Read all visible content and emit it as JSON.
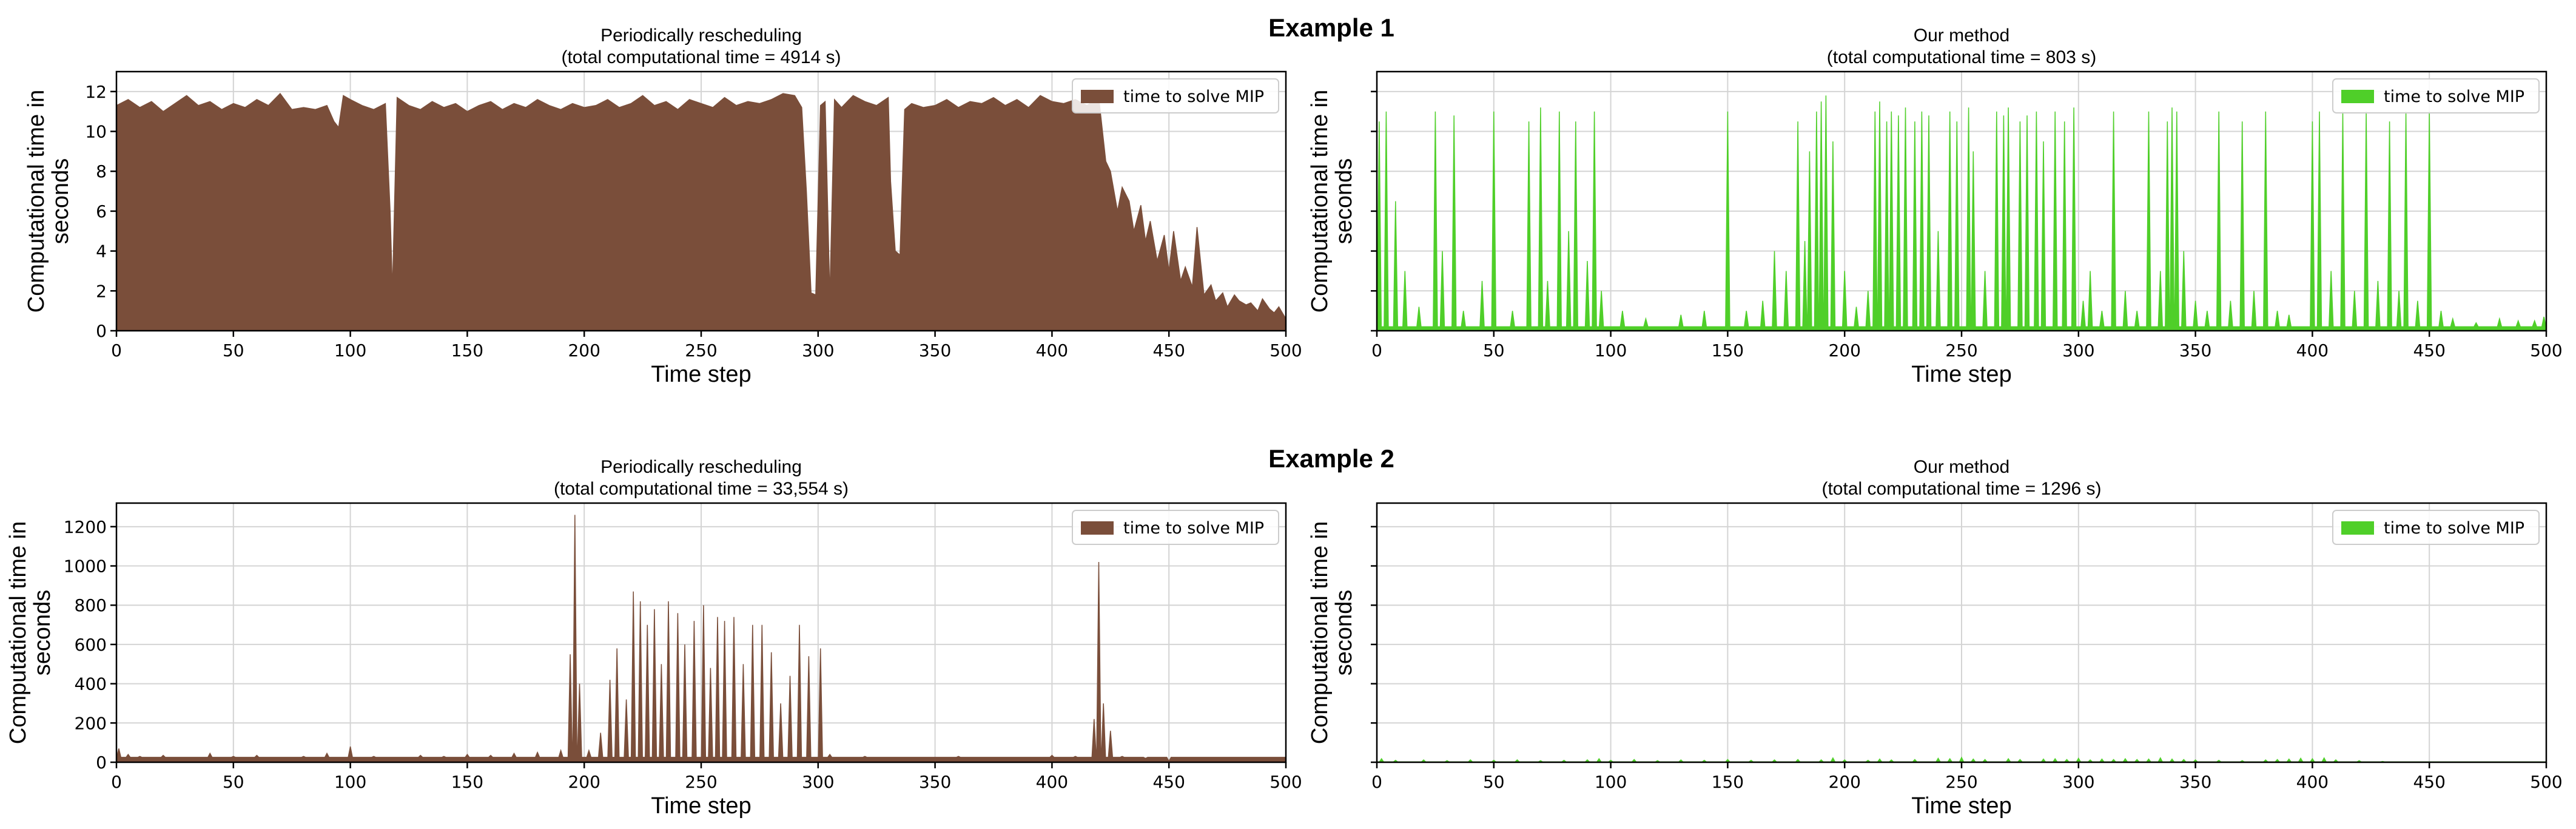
{
  "figure": {
    "example1_label": "Example 1",
    "example2_label": "Example 2"
  },
  "colors": {
    "periodic": "#7a4e3a",
    "ours": "#4fcf29"
  },
  "chart_data": [
    {
      "id": "p1",
      "type": "area",
      "title_line1": "Periodically rescheduling",
      "title_line2": "(total computational time = 4914 s)",
      "xlabel": "Time step",
      "ylabel_line1": "Computational time in",
      "ylabel_line2": "seconds",
      "legend": "time to solve MIP",
      "legend_position": "top-right",
      "grid": true,
      "xlim": [
        0,
        500
      ],
      "ylim": [
        0,
        13
      ],
      "xticks": [
        0,
        50,
        100,
        150,
        200,
        250,
        300,
        350,
        400,
        450,
        500
      ],
      "yticks": [
        0,
        2,
        4,
        6,
        8,
        10,
        12
      ],
      "show_ytick_labels": true,
      "color_key": "periodic",
      "x": [
        0,
        5,
        10,
        15,
        20,
        25,
        30,
        35,
        40,
        45,
        50,
        55,
        60,
        65,
        70,
        75,
        80,
        85,
        90,
        93,
        95,
        97,
        100,
        105,
        110,
        115,
        117,
        118,
        120,
        125,
        130,
        135,
        140,
        145,
        150,
        155,
        160,
        165,
        170,
        175,
        180,
        185,
        190,
        195,
        200,
        205,
        210,
        215,
        220,
        225,
        230,
        235,
        240,
        245,
        250,
        255,
        260,
        265,
        270,
        275,
        280,
        285,
        290,
        293,
        295,
        297,
        299,
        301,
        303,
        305,
        307,
        310,
        315,
        320,
        325,
        330,
        331,
        333,
        335,
        337,
        340,
        345,
        350,
        355,
        360,
        365,
        370,
        375,
        380,
        385,
        390,
        395,
        400,
        405,
        410,
        415,
        420,
        423,
        425,
        428,
        430,
        433,
        435,
        438,
        440,
        442,
        445,
        448,
        450,
        452,
        455,
        457,
        460,
        462,
        465,
        468,
        470,
        473,
        475,
        478,
        480,
        483,
        485,
        488,
        490,
        493,
        495,
        497,
        500
      ],
      "y": [
        11.3,
        11.6,
        11.2,
        11.5,
        11.0,
        11.4,
        11.8,
        11.3,
        11.5,
        11.1,
        11.4,
        11.2,
        11.6,
        11.3,
        11.9,
        11.1,
        11.2,
        11.1,
        11.3,
        10.5,
        10.2,
        11.8,
        11.6,
        11.3,
        11.1,
        11.4,
        6.0,
        2.0,
        11.7,
        11.3,
        11.1,
        11.5,
        11.2,
        11.4,
        11.0,
        11.3,
        11.5,
        11.1,
        11.4,
        11.2,
        11.6,
        11.3,
        11.1,
        11.4,
        11.2,
        11.3,
        11.6,
        11.2,
        11.4,
        11.8,
        11.3,
        11.5,
        11.1,
        11.6,
        11.4,
        11.2,
        11.7,
        11.3,
        11.5,
        11.4,
        11.6,
        11.9,
        11.8,
        11.2,
        7.0,
        1.9,
        1.8,
        11.3,
        11.5,
        1.7,
        11.6,
        11.2,
        11.8,
        11.5,
        11.3,
        11.7,
        7.5,
        4.0,
        3.8,
        11.1,
        11.4,
        11.2,
        11.3,
        11.6,
        11.2,
        11.5,
        11.4,
        11.7,
        11.3,
        11.6,
        11.2,
        11.8,
        11.5,
        11.4,
        11.6,
        11.3,
        11.7,
        8.5,
        8.0,
        6.0,
        7.2,
        6.5,
        5.0,
        6.3,
        4.5,
        5.5,
        3.5,
        4.8,
        3.0,
        5.0,
        2.5,
        3.2,
        2.2,
        5.2,
        1.8,
        2.3,
        1.5,
        1.9,
        1.2,
        1.8,
        1.5,
        1.3,
        1.4,
        1.0,
        1.6,
        1.1,
        0.9,
        1.2,
        0.6
      ]
    },
    {
      "id": "p2",
      "type": "area",
      "title_line1": "Our method",
      "title_line2": "(total computational time = 803 s)",
      "xlabel": "Time step",
      "ylabel_line1": "Computational time in",
      "ylabel_line2": "seconds",
      "legend": "time to solve MIP",
      "legend_position": "top-right",
      "grid": true,
      "xlim": [
        0,
        500
      ],
      "ylim": [
        0,
        13
      ],
      "xticks": [
        0,
        50,
        100,
        150,
        200,
        250,
        300,
        350,
        400,
        450,
        500
      ],
      "yticks": [
        0,
        2,
        4,
        6,
        8,
        10,
        12
      ],
      "show_ytick_labels": false,
      "color_key": "ours",
      "spike_base": 0.2,
      "spikes": [
        [
          1,
          10.5
        ],
        [
          4,
          11.0
        ],
        [
          8,
          6.5
        ],
        [
          12,
          3.0
        ],
        [
          18,
          1.2
        ],
        [
          25,
          11.0
        ],
        [
          28,
          4.0
        ],
        [
          33,
          10.8
        ],
        [
          37,
          1.0
        ],
        [
          45,
          2.5
        ],
        [
          50,
          11.0
        ],
        [
          58,
          1.0
        ],
        [
          65,
          10.5
        ],
        [
          70,
          11.2
        ],
        [
          73,
          2.5
        ],
        [
          78,
          11.0
        ],
        [
          82,
          5.0
        ],
        [
          85,
          10.5
        ],
        [
          90,
          3.5
        ],
        [
          93,
          11.0
        ],
        [
          96,
          2.0
        ],
        [
          105,
          1.0
        ],
        [
          115,
          0.6
        ],
        [
          130,
          0.8
        ],
        [
          140,
          1.0
        ],
        [
          150,
          11.0
        ],
        [
          158,
          1.0
        ],
        [
          165,
          1.5
        ],
        [
          170,
          4.0
        ],
        [
          175,
          3.0
        ],
        [
          180,
          10.5
        ],
        [
          183,
          4.5
        ],
        [
          185,
          9.0
        ],
        [
          188,
          11.0
        ],
        [
          190,
          11.5
        ],
        [
          192,
          11.8
        ],
        [
          195,
          9.5
        ],
        [
          200,
          3.0
        ],
        [
          205,
          1.2
        ],
        [
          210,
          2.0
        ],
        [
          213,
          11.0
        ],
        [
          215,
          11.5
        ],
        [
          218,
          10.5
        ],
        [
          220,
          11.0
        ],
        [
          223,
          10.8
        ],
        [
          226,
          11.2
        ],
        [
          230,
          10.5
        ],
        [
          233,
          11.0
        ],
        [
          236,
          10.8
        ],
        [
          240,
          5.0
        ],
        [
          245,
          11.0
        ],
        [
          248,
          10.5
        ],
        [
          253,
          11.2
        ],
        [
          255,
          9.0
        ],
        [
          260,
          3.0
        ],
        [
          265,
          11.0
        ],
        [
          268,
          10.8
        ],
        [
          270,
          11.2
        ],
        [
          275,
          10.5
        ],
        [
          278,
          10.8
        ],
        [
          282,
          11.0
        ],
        [
          285,
          9.5
        ],
        [
          290,
          11.0
        ],
        [
          294,
          10.5
        ],
        [
          298,
          11.2
        ],
        [
          302,
          1.5
        ],
        [
          305,
          3.0
        ],
        [
          310,
          1.0
        ],
        [
          315,
          11.0
        ],
        [
          320,
          2.0
        ],
        [
          325,
          1.0
        ],
        [
          330,
          11.0
        ],
        [
          335,
          3.0
        ],
        [
          338,
          10.5
        ],
        [
          340,
          11.2
        ],
        [
          342,
          11.0
        ],
        [
          345,
          4.0
        ],
        [
          350,
          1.5
        ],
        [
          355,
          1.0
        ],
        [
          360,
          11.0
        ],
        [
          365,
          1.5
        ],
        [
          370,
          10.5
        ],
        [
          375,
          2.0
        ],
        [
          380,
          11.0
        ],
        [
          385,
          1.0
        ],
        [
          390,
          0.8
        ],
        [
          400,
          10.5
        ],
        [
          403,
          11.0
        ],
        [
          408,
          3.0
        ],
        [
          413,
          11.0
        ],
        [
          418,
          2.0
        ],
        [
          423,
          11.0
        ],
        [
          428,
          2.5
        ],
        [
          433,
          10.5
        ],
        [
          437,
          2.0
        ],
        [
          440,
          11.0
        ],
        [
          445,
          1.5
        ],
        [
          450,
          11.0
        ],
        [
          455,
          1.0
        ],
        [
          460,
          0.6
        ],
        [
          470,
          0.4
        ],
        [
          480,
          0.6
        ],
        [
          488,
          0.5
        ],
        [
          495,
          0.5
        ],
        [
          499,
          0.7
        ]
      ]
    },
    {
      "id": "p3",
      "type": "area",
      "title_line1": "Periodically rescheduling",
      "title_line2": "(total computational time = 33,554 s)",
      "xlabel": "Time step",
      "ylabel_line1": "Computational time in",
      "ylabel_line2": "seconds",
      "legend": "time to solve MIP",
      "legend_position": "top-right",
      "grid": true,
      "xlim": [
        0,
        500
      ],
      "ylim": [
        0,
        1320
      ],
      "xticks": [
        0,
        50,
        100,
        150,
        200,
        250,
        300,
        350,
        400,
        450,
        500
      ],
      "yticks": [
        0,
        200,
        400,
        600,
        800,
        1000,
        1200
      ],
      "show_ytick_labels": true,
      "color_key": "periodic",
      "spike_base": 25,
      "spikes": [
        [
          1,
          70
        ],
        [
          5,
          40
        ],
        [
          10,
          30
        ],
        [
          20,
          35
        ],
        [
          30,
          25
        ],
        [
          40,
          45
        ],
        [
          50,
          30
        ],
        [
          60,
          35
        ],
        [
          70,
          25
        ],
        [
          80,
          30
        ],
        [
          90,
          45
        ],
        [
          100,
          80
        ],
        [
          110,
          30
        ],
        [
          120,
          25
        ],
        [
          130,
          35
        ],
        [
          140,
          30
        ],
        [
          150,
          40
        ],
        [
          160,
          35
        ],
        [
          170,
          45
        ],
        [
          180,
          50
        ],
        [
          190,
          60
        ],
        [
          194,
          550
        ],
        [
          196,
          1260
        ],
        [
          198,
          400
        ],
        [
          202,
          60
        ],
        [
          207,
          150
        ],
        [
          211,
          420
        ],
        [
          214,
          580
        ],
        [
          218,
          320
        ],
        [
          221,
          870
        ],
        [
          224,
          820
        ],
        [
          227,
          700
        ],
        [
          230,
          780
        ],
        [
          233,
          500
        ],
        [
          236,
          820
        ],
        [
          240,
          760
        ],
        [
          243,
          600
        ],
        [
          247,
          720
        ],
        [
          251,
          800
        ],
        [
          254,
          480
        ],
        [
          257,
          740
        ],
        [
          260,
          720
        ],
        [
          264,
          740
        ],
        [
          268,
          500
        ],
        [
          272,
          700
        ],
        [
          276,
          700
        ],
        [
          280,
          560
        ],
        [
          284,
          300
        ],
        [
          288,
          440
        ],
        [
          292,
          700
        ],
        [
          296,
          540
        ],
        [
          301,
          580
        ],
        [
          305,
          40
        ],
        [
          320,
          30
        ],
        [
          340,
          25
        ],
        [
          360,
          30
        ],
        [
          380,
          25
        ],
        [
          400,
          35
        ],
        [
          410,
          30
        ],
        [
          418,
          220
        ],
        [
          420,
          1020
        ],
        [
          422,
          300
        ],
        [
          425,
          160
        ],
        [
          430,
          30
        ],
        [
          440,
          20
        ],
        [
          450,
          5
        ]
      ]
    },
    {
      "id": "p4",
      "type": "area",
      "title_line1": "Our method",
      "title_line2": "(total computational time = 1296 s)",
      "xlabel": "Time step",
      "ylabel_line1": "Computational time in",
      "ylabel_line2": "seconds",
      "legend": "time to solve MIP",
      "legend_position": "top-right",
      "grid": true,
      "xlim": [
        0,
        500
      ],
      "ylim": [
        0,
        1320
      ],
      "xticks": [
        0,
        50,
        100,
        150,
        200,
        250,
        300,
        350,
        400,
        450,
        500
      ],
      "yticks": [
        0,
        200,
        400,
        600,
        800,
        1000,
        1200
      ],
      "show_ytick_labels": false,
      "color_key": "ours",
      "spike_base": 2,
      "spikes": [
        [
          2,
          18
        ],
        [
          8,
          10
        ],
        [
          20,
          12
        ],
        [
          30,
          8
        ],
        [
          40,
          12
        ],
        [
          50,
          10
        ],
        [
          60,
          12
        ],
        [
          70,
          8
        ],
        [
          80,
          10
        ],
        [
          90,
          12
        ],
        [
          95,
          18
        ],
        [
          100,
          10
        ],
        [
          110,
          14
        ],
        [
          120,
          8
        ],
        [
          130,
          12
        ],
        [
          140,
          10
        ],
        [
          150,
          14
        ],
        [
          160,
          10
        ],
        [
          170,
          12
        ],
        [
          180,
          14
        ],
        [
          190,
          12
        ],
        [
          195,
          22
        ],
        [
          200,
          12
        ],
        [
          210,
          10
        ],
        [
          215,
          16
        ],
        [
          220,
          12
        ],
        [
          230,
          14
        ],
        [
          240,
          20
        ],
        [
          245,
          18
        ],
        [
          250,
          24
        ],
        [
          255,
          16
        ],
        [
          260,
          14
        ],
        [
          270,
          18
        ],
        [
          275,
          14
        ],
        [
          285,
          16
        ],
        [
          290,
          18
        ],
        [
          295,
          14
        ],
        [
          300,
          20
        ],
        [
          305,
          12
        ],
        [
          310,
          16
        ],
        [
          315,
          14
        ],
        [
          320,
          18
        ],
        [
          325,
          14
        ],
        [
          330,
          16
        ],
        [
          335,
          22
        ],
        [
          340,
          16
        ],
        [
          345,
          14
        ],
        [
          350,
          12
        ],
        [
          360,
          10
        ],
        [
          370,
          8
        ],
        [
          380,
          12
        ],
        [
          385,
          14
        ],
        [
          390,
          16
        ],
        [
          395,
          20
        ],
        [
          400,
          18
        ],
        [
          405,
          22
        ],
        [
          410,
          12
        ],
        [
          420,
          8
        ],
        [
          430,
          4
        ]
      ]
    }
  ]
}
